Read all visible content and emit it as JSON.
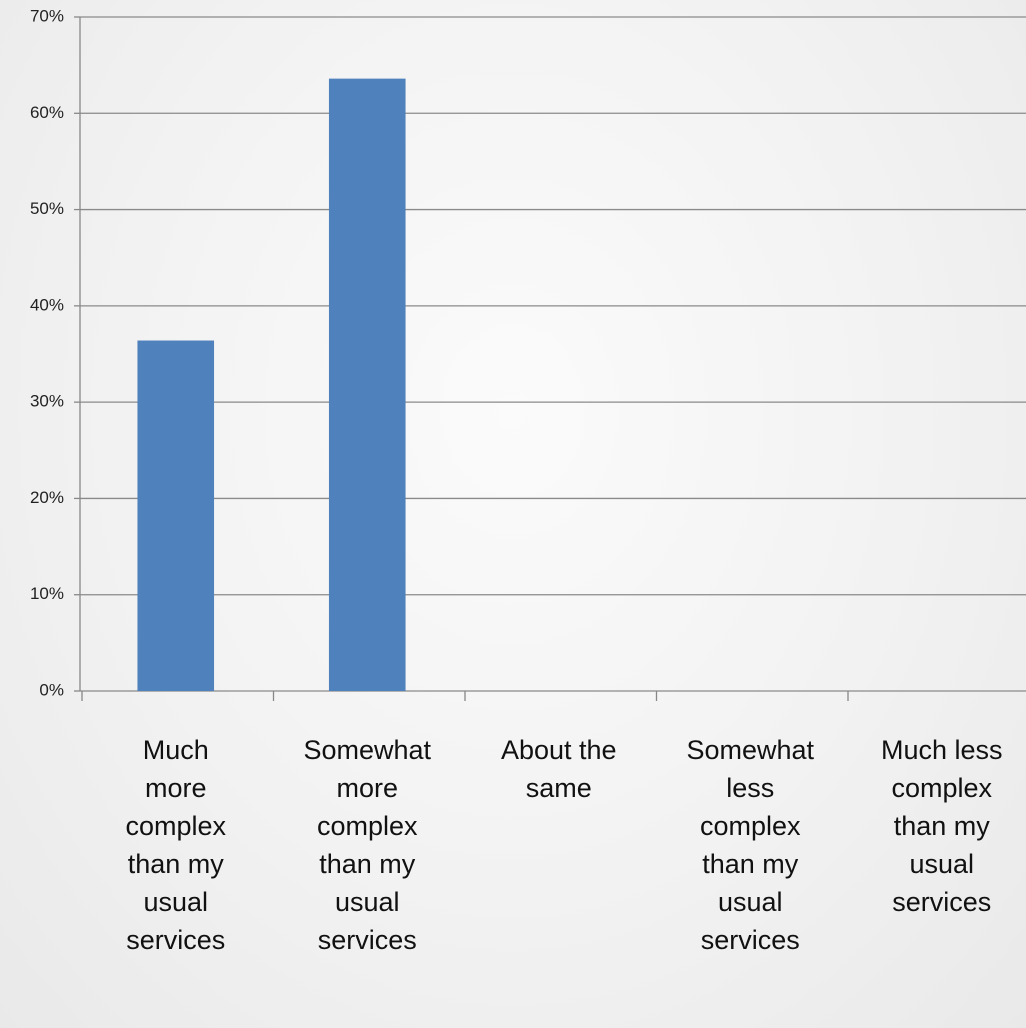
{
  "chart_data": {
    "type": "bar",
    "categories": [
      "Much more complex than my usual services",
      "Somewhat more complex than my usual services",
      "About the same",
      "Somewhat less complex than my usual services",
      "Much less complex than my usual services"
    ],
    "values": [
      36.4,
      63.6,
      0,
      0,
      0
    ],
    "color": "#4f81bd",
    "ylim": [
      0,
      70
    ],
    "yticks": [
      {
        "value": 0,
        "label": "0%"
      },
      {
        "value": 10,
        "label": "10%"
      },
      {
        "value": 20,
        "label": "20%"
      },
      {
        "value": 30,
        "label": "30%"
      },
      {
        "value": 40,
        "label": "40%"
      },
      {
        "value": 50,
        "label": "50%"
      },
      {
        "value": 60,
        "label": "60%"
      },
      {
        "value": 70,
        "label": "70%"
      }
    ],
    "grid": true
  }
}
